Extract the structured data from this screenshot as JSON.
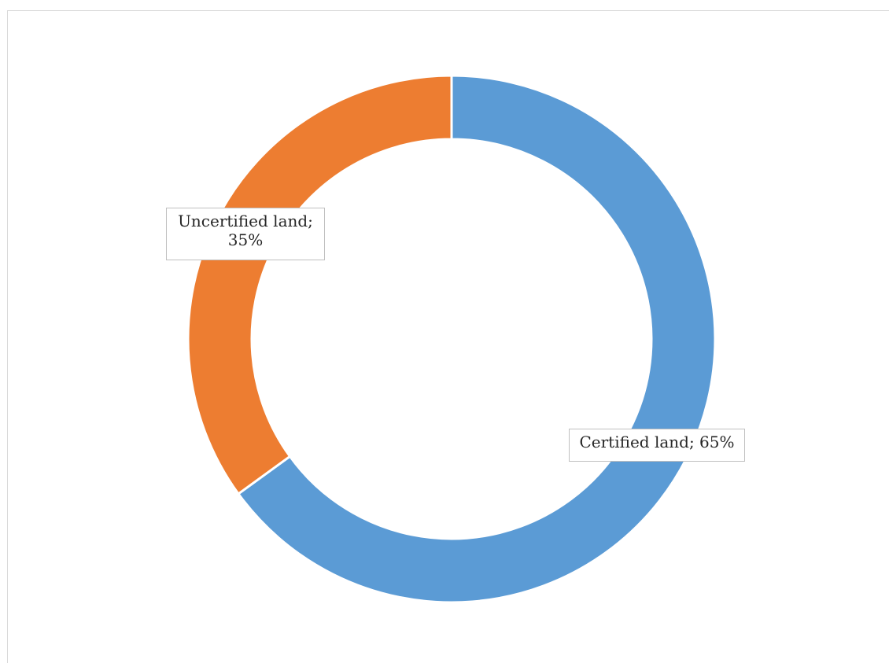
{
  "chart_data": {
    "type": "pie",
    "subtype": "donut",
    "categories": [
      "Certified land",
      "Uncertified land"
    ],
    "values": [
      65,
      35
    ],
    "unit": "%",
    "colors": [
      "#5b9bd5",
      "#ed7d31"
    ],
    "data_labels": [
      {
        "category": "Certified land",
        "text": "Certified land; 65%"
      },
      {
        "category": "Uncertified land",
        "line1": "Uncertified land;",
        "line2": "35%"
      }
    ],
    "legend": "none",
    "title": ""
  }
}
